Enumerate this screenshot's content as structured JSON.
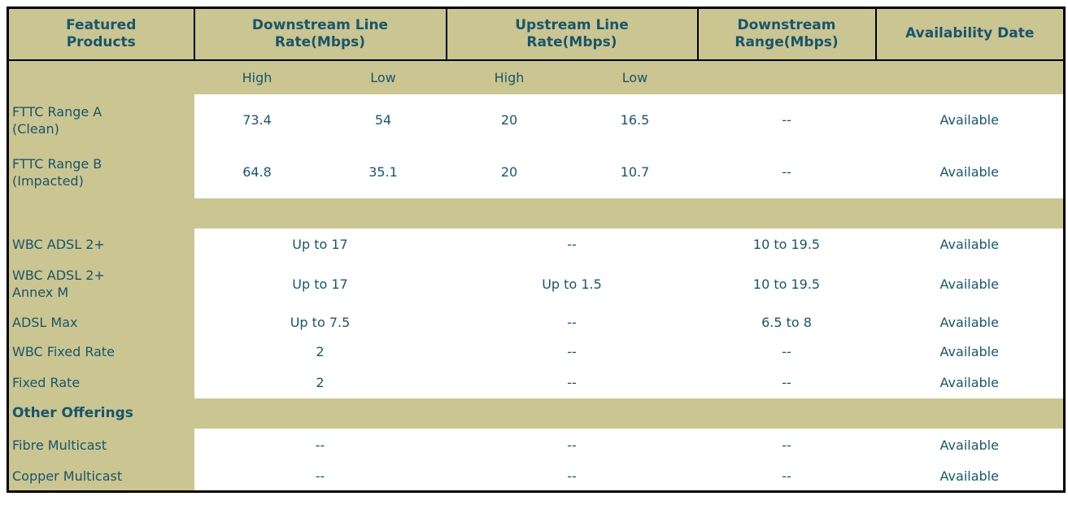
{
  "header": {
    "featured_products": "Featured\nProducts",
    "downstream_line_rate": "Downstream Line\nRate(Mbps)",
    "upstream_line_rate": "Upstream Line\nRate(Mbps)",
    "downstream_range": "Downstream\nRange(Mbps)",
    "availability_date": "Availability Date",
    "sub_high": "High",
    "sub_low": "Low"
  },
  "rows": [
    {
      "type": "split",
      "label": "FTTC Range A\n(Clean)",
      "dl_high": "73.4",
      "dl_low": "54",
      "ul_high": "20",
      "ul_low": "16.5",
      "range": "--",
      "availability": "Available"
    },
    {
      "type": "split",
      "label": "FTTC Range B\n(Impacted)",
      "dl_high": "64.8",
      "dl_low": "35.1",
      "ul_high": "20",
      "ul_low": "10.7",
      "range": "--",
      "availability": "Available"
    },
    {
      "type": "separator"
    },
    {
      "type": "merged",
      "label": "WBC ADSL 2+",
      "dl": "Up to 17",
      "ul": "--",
      "range": "10 to 19.5",
      "availability": "Available"
    },
    {
      "type": "merged",
      "label": "WBC ADSL 2+\nAnnex M",
      "dl": "Up to 17",
      "ul": "Up to 1.5",
      "range": "10 to 19.5",
      "availability": "Available"
    },
    {
      "type": "merged",
      "label": "ADSL Max",
      "dl": "Up to 7.5",
      "ul": "--",
      "range": "6.5 to 8",
      "availability": "Available"
    },
    {
      "type": "merged",
      "label": "WBC Fixed Rate",
      "dl": "2",
      "ul": "--",
      "range": "--",
      "availability": "Available"
    },
    {
      "type": "merged",
      "label": "Fixed Rate",
      "dl": "2",
      "ul": "--",
      "range": "--",
      "availability": "Available"
    },
    {
      "type": "section",
      "label": "Other Offerings"
    },
    {
      "type": "merged",
      "label": "Fibre Multicast",
      "dl": "--",
      "ul": "--",
      "range": "--",
      "availability": "Available"
    },
    {
      "type": "merged",
      "label": "Copper Multicast",
      "dl": "--",
      "ul": "--",
      "range": "--",
      "availability": "Available"
    }
  ],
  "colors": {
    "header_background": "#CBC591",
    "text": "#17566C",
    "border": "#000000",
    "data_background": "#FFFFFF"
  },
  "chart_data": {
    "type": "table",
    "title": "Featured Products availability",
    "columns": [
      "Featured Products",
      "Downstream Line Rate(Mbps) High",
      "Downstream Line Rate(Mbps) Low",
      "Upstream Line Rate(Mbps) High",
      "Upstream Line Rate(Mbps) Low",
      "Downstream Range(Mbps)",
      "Availability Date"
    ],
    "rows": [
      [
        "FTTC Range A (Clean)",
        "73.4",
        "54",
        "20",
        "16.5",
        "--",
        "Available"
      ],
      [
        "FTTC Range B (Impacted)",
        "64.8",
        "35.1",
        "20",
        "10.7",
        "--",
        "Available"
      ],
      [
        "WBC ADSL 2+",
        "Up to 17",
        "Up to 17",
        "--",
        "--",
        "10 to 19.5",
        "Available"
      ],
      [
        "WBC ADSL 2+ Annex M",
        "Up to 17",
        "Up to 17",
        "Up to 1.5",
        "Up to 1.5",
        "10 to 19.5",
        "Available"
      ],
      [
        "ADSL Max",
        "Up to 7.5",
        "Up to 7.5",
        "--",
        "--",
        "6.5 to 8",
        "Available"
      ],
      [
        "WBC Fixed Rate",
        "2",
        "2",
        "--",
        "--",
        "--",
        "Available"
      ],
      [
        "Fixed Rate",
        "2",
        "2",
        "--",
        "--",
        "--",
        "Available"
      ],
      [
        "Other Offerings",
        "",
        "",
        "",
        "",
        "",
        ""
      ],
      [
        "Fibre Multicast",
        "--",
        "--",
        "--",
        "--",
        "--",
        "Available"
      ],
      [
        "Copper Multicast",
        "--",
        "--",
        "--",
        "--",
        "--",
        "Available"
      ]
    ]
  }
}
